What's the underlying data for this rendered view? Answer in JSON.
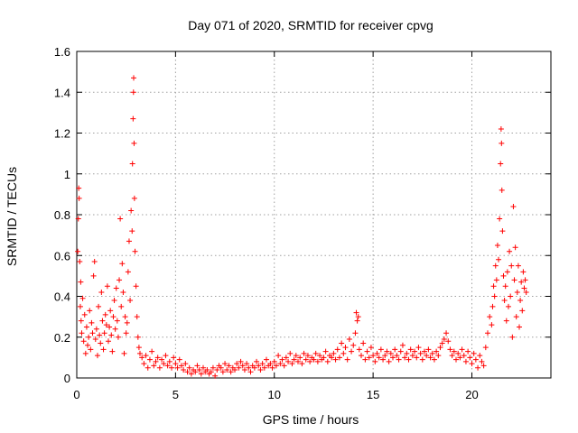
{
  "chart_data": {
    "type": "scatter",
    "title": "Day 071 of 2020, SRMTID for receiver cpvg",
    "xlabel": "GPS time / hours",
    "ylabel": "SRMTID / TECUs",
    "xlim": [
      0,
      24
    ],
    "ylim": [
      0,
      1.6
    ],
    "xticks": [
      0,
      5,
      10,
      15,
      20
    ],
    "yticks": [
      0,
      0.2,
      0.4,
      0.6,
      0.8,
      1,
      1.2,
      1.4,
      1.6
    ],
    "ytick_labels": [
      "0",
      "0.2",
      "0.4",
      "0.6",
      "0.8",
      "1",
      "1.2",
      "1.4",
      "1.6"
    ],
    "grid": true,
    "marker": "+",
    "color": "#ff0000",
    "series": [
      {
        "name": "SRMTID",
        "points": [
          [
            0.05,
            0.62
          ],
          [
            0.08,
            0.78
          ],
          [
            0.1,
            0.93
          ],
          [
            0.12,
            0.88
          ],
          [
            0.15,
            0.57
          ],
          [
            0.18,
            0.35
          ],
          [
            0.2,
            0.47
          ],
          [
            0.22,
            0.28
          ],
          [
            0.25,
            0.22
          ],
          [
            0.3,
            0.39
          ],
          [
            0.35,
            0.18
          ],
          [
            0.4,
            0.31
          ],
          [
            0.45,
            0.12
          ],
          [
            0.5,
            0.25
          ],
          [
            0.55,
            0.16
          ],
          [
            0.6,
            0.2
          ],
          [
            0.65,
            0.33
          ],
          [
            0.7,
            0.14
          ],
          [
            0.75,
            0.27
          ],
          [
            0.8,
            0.22
          ],
          [
            0.85,
            0.5
          ],
          [
            0.9,
            0.57
          ],
          [
            0.95,
            0.19
          ],
          [
            1.0,
            0.24
          ],
          [
            1.05,
            0.11
          ],
          [
            1.1,
            0.35
          ],
          [
            1.15,
            0.21
          ],
          [
            1.2,
            0.17
          ],
          [
            1.25,
            0.42
          ],
          [
            1.3,
            0.28
          ],
          [
            1.35,
            0.14
          ],
          [
            1.4,
            0.22
          ],
          [
            1.45,
            0.31
          ],
          [
            1.5,
            0.26
          ],
          [
            1.55,
            0.45
          ],
          [
            1.6,
            0.18
          ],
          [
            1.65,
            0.25
          ],
          [
            1.7,
            0.33
          ],
          [
            1.75,
            0.21
          ],
          [
            1.8,
            0.13
          ],
          [
            1.85,
            0.3
          ],
          [
            1.9,
            0.38
          ],
          [
            1.95,
            0.24
          ],
          [
            2.0,
            0.44
          ],
          [
            2.05,
            0.28
          ],
          [
            2.1,
            0.2
          ],
          [
            2.15,
            0.48
          ],
          [
            2.2,
            0.78
          ],
          [
            2.25,
            0.35
          ],
          [
            2.3,
            0.56
          ],
          [
            2.35,
            0.42
          ],
          [
            2.4,
            0.12
          ],
          [
            2.45,
            0.3
          ],
          [
            2.5,
            0.22
          ],
          [
            2.55,
            0.27
          ],
          [
            2.6,
            0.52
          ],
          [
            2.65,
            0.67
          ],
          [
            2.7,
            0.38
          ],
          [
            2.75,
            0.82
          ],
          [
            2.8,
            0.72
          ],
          [
            2.82,
            1.05
          ],
          [
            2.85,
            1.27
          ],
          [
            2.87,
            1.4
          ],
          [
            2.88,
            1.47
          ],
          [
            2.9,
            1.15
          ],
          [
            2.92,
            0.88
          ],
          [
            2.95,
            0.62
          ],
          [
            3.0,
            0.45
          ],
          [
            3.05,
            0.3
          ],
          [
            3.1,
            0.2
          ],
          [
            3.15,
            0.15
          ],
          [
            3.2,
            0.12
          ],
          [
            3.3,
            0.1
          ],
          [
            3.4,
            0.07
          ],
          [
            3.5,
            0.11
          ],
          [
            3.6,
            0.05
          ],
          [
            3.7,
            0.09
          ],
          [
            3.8,
            0.13
          ],
          [
            3.9,
            0.06
          ],
          [
            4.0,
            0.08
          ],
          [
            4.1,
            0.1
          ],
          [
            4.2,
            0.05
          ],
          [
            4.3,
            0.09
          ],
          [
            4.4,
            0.07
          ],
          [
            4.5,
            0.11
          ],
          [
            4.6,
            0.06
          ],
          [
            4.7,
            0.08
          ],
          [
            4.8,
            0.05
          ],
          [
            4.9,
            0.1
          ],
          [
            5.0,
            0.07
          ],
          [
            5.1,
            0.05
          ],
          [
            5.2,
            0.09
          ],
          [
            5.3,
            0.06
          ],
          [
            5.4,
            0.04
          ],
          [
            5.5,
            0.07
          ],
          [
            5.6,
            0.03
          ],
          [
            5.7,
            0.05
          ],
          [
            5.8,
            0.02
          ],
          [
            5.9,
            0.04
          ],
          [
            6.0,
            0.03
          ],
          [
            6.1,
            0.06
          ],
          [
            6.2,
            0.04
          ],
          [
            6.3,
            0.02
          ],
          [
            6.4,
            0.05
          ],
          [
            6.5,
            0.03
          ],
          [
            6.6,
            0.04
          ],
          [
            6.7,
            0.02
          ],
          [
            6.8,
            0.03
          ],
          [
            6.9,
            0.05
          ],
          [
            7.0,
            0.01
          ],
          [
            7.1,
            0.04
          ],
          [
            7.2,
            0.06
          ],
          [
            7.3,
            0.05
          ],
          [
            7.4,
            0.03
          ],
          [
            7.5,
            0.07
          ],
          [
            7.6,
            0.04
          ],
          [
            7.7,
            0.06
          ],
          [
            7.8,
            0.03
          ],
          [
            7.9,
            0.05
          ],
          [
            8.0,
            0.04
          ],
          [
            8.1,
            0.07
          ],
          [
            8.2,
            0.05
          ],
          [
            8.3,
            0.08
          ],
          [
            8.4,
            0.06
          ],
          [
            8.5,
            0.04
          ],
          [
            8.6,
            0.07
          ],
          [
            8.7,
            0.05
          ],
          [
            8.8,
            0.03
          ],
          [
            8.9,
            0.06
          ],
          [
            9.0,
            0.05
          ],
          [
            9.1,
            0.08
          ],
          [
            9.2,
            0.06
          ],
          [
            9.3,
            0.04
          ],
          [
            9.4,
            0.07
          ],
          [
            9.5,
            0.05
          ],
          [
            9.6,
            0.09
          ],
          [
            9.7,
            0.06
          ],
          [
            9.8,
            0.07
          ],
          [
            9.9,
            0.05
          ],
          [
            10.0,
            0.08
          ],
          [
            10.1,
            0.06
          ],
          [
            10.2,
            0.11
          ],
          [
            10.3,
            0.07
          ],
          [
            10.4,
            0.09
          ],
          [
            10.5,
            0.06
          ],
          [
            10.6,
            0.1
          ],
          [
            10.7,
            0.08
          ],
          [
            10.8,
            0.12
          ],
          [
            10.9,
            0.07
          ],
          [
            11.0,
            0.09
          ],
          [
            11.1,
            0.11
          ],
          [
            11.2,
            0.08
          ],
          [
            11.3,
            0.1
          ],
          [
            11.4,
            0.07
          ],
          [
            11.5,
            0.12
          ],
          [
            11.6,
            0.09
          ],
          [
            11.7,
            0.11
          ],
          [
            11.8,
            0.08
          ],
          [
            11.9,
            0.1
          ],
          [
            12.0,
            0.09
          ],
          [
            12.1,
            0.12
          ],
          [
            12.2,
            0.08
          ],
          [
            12.3,
            0.11
          ],
          [
            12.4,
            0.09
          ],
          [
            12.5,
            0.1
          ],
          [
            12.6,
            0.13
          ],
          [
            12.7,
            0.08
          ],
          [
            12.8,
            0.11
          ],
          [
            12.9,
            0.1
          ],
          [
            13.0,
            0.12
          ],
          [
            13.1,
            0.09
          ],
          [
            13.2,
            0.14
          ],
          [
            13.3,
            0.1
          ],
          [
            13.4,
            0.17
          ],
          [
            13.5,
            0.12
          ],
          [
            13.6,
            0.15
          ],
          [
            13.7,
            0.09
          ],
          [
            13.8,
            0.19
          ],
          [
            13.9,
            0.13
          ],
          [
            14.0,
            0.16
          ],
          [
            14.1,
            0.22
          ],
          [
            14.15,
            0.32
          ],
          [
            14.2,
            0.28
          ],
          [
            14.25,
            0.3
          ],
          [
            14.3,
            0.14
          ],
          [
            14.4,
            0.11
          ],
          [
            14.5,
            0.17
          ],
          [
            14.6,
            0.09
          ],
          [
            14.7,
            0.13
          ],
          [
            14.8,
            0.1
          ],
          [
            14.9,
            0.15
          ],
          [
            15.0,
            0.11
          ],
          [
            15.1,
            0.08
          ],
          [
            15.2,
            0.12
          ],
          [
            15.3,
            0.1
          ],
          [
            15.4,
            0.14
          ],
          [
            15.5,
            0.09
          ],
          [
            15.6,
            0.11
          ],
          [
            15.7,
            0.13
          ],
          [
            15.8,
            0.08
          ],
          [
            15.9,
            0.12
          ],
          [
            16.0,
            0.1
          ],
          [
            16.1,
            0.14
          ],
          [
            16.2,
            0.11
          ],
          [
            16.3,
            0.09
          ],
          [
            16.4,
            0.13
          ],
          [
            16.5,
            0.16
          ],
          [
            16.6,
            0.1
          ],
          [
            16.7,
            0.12
          ],
          [
            16.8,
            0.09
          ],
          [
            16.9,
            0.14
          ],
          [
            17.0,
            0.11
          ],
          [
            17.1,
            0.13
          ],
          [
            17.2,
            0.1
          ],
          [
            17.3,
            0.15
          ],
          [
            17.4,
            0.12
          ],
          [
            17.5,
            0.09
          ],
          [
            17.6,
            0.13
          ],
          [
            17.7,
            0.11
          ],
          [
            17.8,
            0.14
          ],
          [
            17.9,
            0.1
          ],
          [
            18.0,
            0.12
          ],
          [
            18.1,
            0.09
          ],
          [
            18.2,
            0.13
          ],
          [
            18.3,
            0.11
          ],
          [
            18.4,
            0.15
          ],
          [
            18.5,
            0.17
          ],
          [
            18.6,
            0.19
          ],
          [
            18.7,
            0.22
          ],
          [
            18.8,
            0.18
          ],
          [
            18.9,
            0.14
          ],
          [
            19.0,
            0.11
          ],
          [
            19.1,
            0.13
          ],
          [
            19.2,
            0.09
          ],
          [
            19.3,
            0.12
          ],
          [
            19.4,
            0.1
          ],
          [
            19.5,
            0.14
          ],
          [
            19.6,
            0.11
          ],
          [
            19.7,
            0.08
          ],
          [
            19.8,
            0.13
          ],
          [
            19.9,
            0.1
          ],
          [
            20.0,
            0.07
          ],
          [
            20.1,
            0.12
          ],
          [
            20.2,
            0.09
          ],
          [
            20.3,
            0.05
          ],
          [
            20.4,
            0.11
          ],
          [
            20.5,
            0.08
          ],
          [
            20.6,
            0.06
          ],
          [
            20.7,
            0.15
          ],
          [
            20.8,
            0.22
          ],
          [
            20.9,
            0.3
          ],
          [
            21.0,
            0.26
          ],
          [
            21.05,
            0.35
          ],
          [
            21.1,
            0.45
          ],
          [
            21.15,
            0.4
          ],
          [
            21.2,
            0.55
          ],
          [
            21.25,
            0.48
          ],
          [
            21.3,
            0.65
          ],
          [
            21.35,
            0.58
          ],
          [
            21.4,
            0.78
          ],
          [
            21.45,
            1.05
          ],
          [
            21.48,
            1.22
          ],
          [
            21.5,
            1.15
          ],
          [
            21.52,
            0.92
          ],
          [
            21.55,
            0.72
          ],
          [
            21.6,
            0.5
          ],
          [
            21.65,
            0.38
          ],
          [
            21.7,
            0.45
          ],
          [
            21.75,
            0.28
          ],
          [
            21.8,
            0.52
          ],
          [
            21.85,
            0.35
          ],
          [
            21.9,
            0.62
          ],
          [
            21.95,
            0.4
          ],
          [
            22.0,
            0.55
          ],
          [
            22.05,
            0.2
          ],
          [
            22.1,
            0.84
          ],
          [
            22.15,
            0.48
          ],
          [
            22.2,
            0.64
          ],
          [
            22.25,
            0.3
          ],
          [
            22.3,
            0.42
          ],
          [
            22.35,
            0.55
          ],
          [
            22.4,
            0.25
          ],
          [
            22.45,
            0.38
          ],
          [
            22.5,
            0.47
          ],
          [
            22.55,
            0.33
          ],
          [
            22.6,
            0.52
          ],
          [
            22.65,
            0.44
          ],
          [
            22.7,
            0.48
          ],
          [
            22.75,
            0.42
          ]
        ]
      }
    ]
  }
}
